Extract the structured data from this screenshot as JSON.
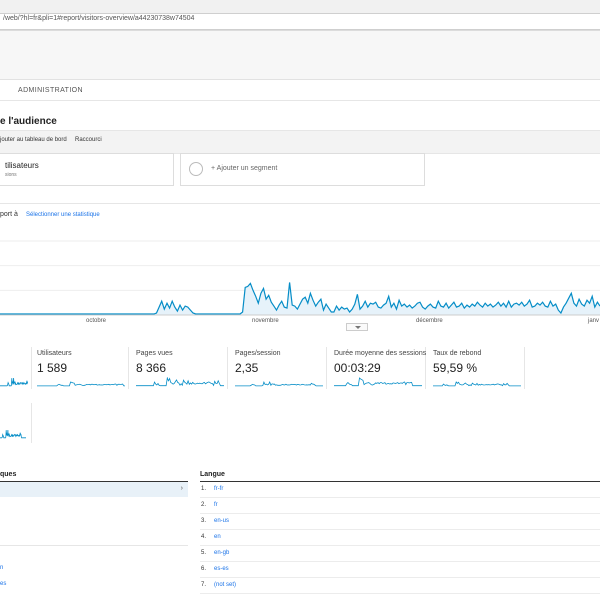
{
  "browser": {
    "url": "/web/?hl=fr&pli=1#report/visitors-overview/a44230738w74504"
  },
  "nav": {
    "admin_tab": "ADMINISTRATION"
  },
  "page": {
    "title": "e l'audience"
  },
  "toolbar": {
    "add_dashboard": "jouter au tableau de bord",
    "shortcut": "Raccourci"
  },
  "segments": {
    "active": {
      "title": "tilisateurs",
      "subtitle": "sions"
    },
    "add": {
      "label": "+ Ajouter un segment"
    }
  },
  "compare": {
    "label": "port à",
    "select": "Sélectionner une statistique"
  },
  "chart_data": {
    "type": "area",
    "color": "#058dc7",
    "fill": "#e6f2fa",
    "x_tick_labels": [
      "octobre",
      "novembre",
      "décembre",
      "janv"
    ],
    "y_values": [
      1,
      1,
      1,
      1,
      1,
      1,
      1,
      1,
      1,
      1,
      1,
      1,
      1,
      1,
      1,
      1,
      1,
      1,
      1,
      1,
      1,
      1,
      1,
      1,
      1,
      1,
      1,
      1,
      1,
      1,
      1,
      1,
      1,
      1,
      1,
      1,
      1,
      1,
      1,
      1,
      1,
      1,
      1,
      1,
      1,
      1,
      1,
      1,
      1,
      1,
      1,
      1,
      1,
      1,
      1,
      1,
      1,
      1,
      1,
      1,
      2,
      8,
      14,
      6,
      12,
      7,
      14,
      8,
      4,
      10,
      5,
      9,
      8,
      5,
      2,
      1,
      1,
      1,
      1,
      1,
      1,
      1,
      1,
      1,
      1,
      1,
      1,
      1,
      1,
      1,
      1,
      1,
      1,
      3,
      28,
      29,
      32,
      25,
      19,
      12,
      22,
      27,
      16,
      20,
      13,
      9,
      5,
      10,
      14,
      8,
      7,
      33,
      10,
      9,
      6,
      11,
      16,
      18,
      12,
      22,
      15,
      9,
      13,
      16,
      5,
      11,
      7,
      3,
      3,
      9,
      5,
      8,
      6,
      7,
      3,
      6,
      11,
      21,
      6,
      9,
      14,
      8,
      12,
      11,
      13,
      8,
      7,
      10,
      12,
      19,
      8,
      12,
      6,
      15,
      9,
      11,
      8,
      10,
      7,
      9,
      12,
      13,
      8,
      6,
      9,
      11,
      8,
      7,
      14,
      9,
      8,
      12,
      7,
      10,
      13,
      8,
      9,
      12,
      7,
      10,
      8,
      11,
      9,
      13,
      10,
      8,
      12,
      9,
      11,
      8,
      10,
      13,
      9,
      12,
      8,
      14,
      8,
      11,
      12,
      10,
      13,
      9,
      11,
      15,
      8,
      9,
      12,
      10,
      13,
      9,
      8,
      14,
      9,
      11,
      5,
      2,
      8,
      12,
      17,
      22,
      12,
      9,
      16,
      11,
      9,
      15,
      12,
      19,
      8,
      13,
      9
    ],
    "y_range": [
      0,
      75
    ],
    "grid": true
  },
  "metrics": [
    {
      "label": "",
      "value": ""
    },
    {
      "label": "Utilisateurs",
      "value": "1 589"
    },
    {
      "label": "Pages vues",
      "value": "8 366"
    },
    {
      "label": "Pages/session",
      "value": "2,35"
    },
    {
      "label": "Durée moyenne des sessions",
      "value": "00:03:29"
    },
    {
      "label": "Taux de rebond",
      "value": "59,59 %"
    }
  ],
  "lower": {
    "left_header": "ques",
    "left_links": [
      "n",
      "es"
    ],
    "right_header": "Langue",
    "languages": [
      {
        "n": "1.",
        "v": "fr-fr"
      },
      {
        "n": "2.",
        "v": "fr"
      },
      {
        "n": "3.",
        "v": "en-us"
      },
      {
        "n": "4.",
        "v": "en"
      },
      {
        "n": "5.",
        "v": "en-gb"
      },
      {
        "n": "6.",
        "v": "es-es"
      },
      {
        "n": "7.",
        "v": "(not set)"
      }
    ]
  }
}
